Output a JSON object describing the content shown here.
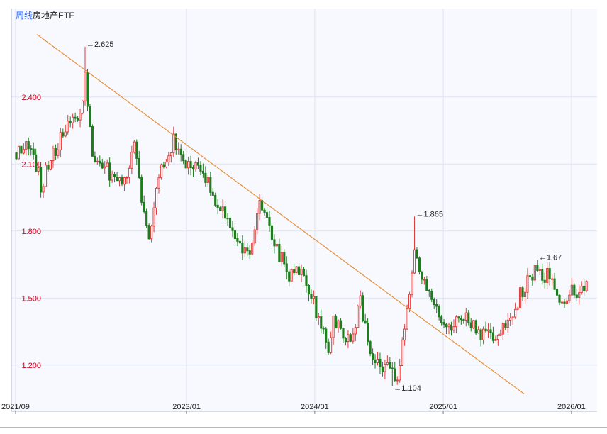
{
  "header": {
    "period_label": "周线",
    "instrument_name": "房地产ETF"
  },
  "colors": {
    "up": "#e03c3c",
    "down": "#1e7d1e",
    "trendline": "#e8913c",
    "grid": "#dce4f2",
    "axis_label": "#d0021b",
    "background": "#f8f9ff",
    "period_label": "#2962ff"
  },
  "chart_data": {
    "type": "candlestick",
    "title": "",
    "xlabel": "",
    "ylabel": "",
    "ylim": [
      1.05,
      2.72
    ],
    "xlim": [
      "2021-08-20",
      "2026-03-15"
    ],
    "y_ticks": [
      "1.200",
      "1.500",
      "1.800",
      "2.100",
      "2.400"
    ],
    "x_ticks": [
      {
        "date": "2021-09-01",
        "label": "2021/09"
      },
      {
        "date": "2023-01-01",
        "label": "2023/01"
      },
      {
        "date": "2024-01-01",
        "label": "2024/01"
      },
      {
        "date": "2025-01-01",
        "label": "2025/01"
      },
      {
        "date": "2026-01-01",
        "label": "2026/01"
      }
    ],
    "grid": true,
    "annotations": [
      {
        "label": "2.625",
        "date": "2022-03-18",
        "value": 2.625,
        "side": "above"
      },
      {
        "label": "1.865",
        "date": "2024-10-11",
        "value": 1.865,
        "side": "above"
      },
      {
        "label": "1.104",
        "date": "2024-08-09",
        "value": 1.104,
        "side": "below"
      },
      {
        "label": "1.67",
        "date": "2025-09-26",
        "value": 1.67,
        "side": "above"
      }
    ],
    "trendline": {
      "start": {
        "date": "2021-11-01",
        "value": 2.68
      },
      "end": {
        "date": "2025-08-20",
        "value": 1.07
      }
    },
    "anchors": [
      [
        "2021-09-03",
        2.15
      ],
      [
        "2021-10-15",
        2.2
      ],
      [
        "2021-11-12",
        2.0
      ],
      [
        "2021-12-10",
        2.12
      ],
      [
        "2022-01-07",
        2.22
      ],
      [
        "2022-02-11",
        2.3
      ],
      [
        "2022-03-11",
        2.35
      ],
      [
        "2022-03-18",
        2.5
      ],
      [
        "2022-04-08",
        2.15
      ],
      [
        "2022-05-06",
        2.1
      ],
      [
        "2022-06-03",
        2.05
      ],
      [
        "2022-07-08",
        2.02
      ],
      [
        "2022-08-05",
        2.18
      ],
      [
        "2022-08-26",
        1.95
      ],
      [
        "2022-09-16",
        1.78
      ],
      [
        "2022-10-21",
        2.1
      ],
      [
        "2022-11-25",
        2.2
      ],
      [
        "2022-12-23",
        2.1
      ],
      [
        "2023-01-20",
        2.1
      ],
      [
        "2023-02-24",
        2.05
      ],
      [
        "2023-03-24",
        1.92
      ],
      [
        "2023-05-05",
        1.85
      ],
      [
        "2023-06-09",
        1.68
      ],
      [
        "2023-07-07",
        1.72
      ],
      [
        "2023-07-28",
        1.95
      ],
      [
        "2023-08-18",
        1.83
      ],
      [
        "2023-09-15",
        1.72
      ],
      [
        "2023-10-20",
        1.6
      ],
      [
        "2023-11-17",
        1.62
      ],
      [
        "2023-12-22",
        1.52
      ],
      [
        "2024-01-19",
        1.35
      ],
      [
        "2024-02-09",
        1.28
      ],
      [
        "2024-02-23",
        1.4
      ],
      [
        "2024-03-22",
        1.35
      ],
      [
        "2024-04-12",
        1.32
      ],
      [
        "2024-05-10",
        1.48
      ],
      [
        "2024-06-07",
        1.28
      ],
      [
        "2024-07-05",
        1.18
      ],
      [
        "2024-08-02",
        1.18
      ],
      [
        "2024-08-23",
        1.15
      ],
      [
        "2024-09-27",
        1.5
      ],
      [
        "2024-10-11",
        1.75
      ],
      [
        "2024-11-01",
        1.6
      ],
      [
        "2024-12-06",
        1.5
      ],
      [
        "2025-01-10",
        1.36
      ],
      [
        "2025-02-14",
        1.42
      ],
      [
        "2025-03-14",
        1.4
      ],
      [
        "2025-04-11",
        1.35
      ],
      [
        "2025-05-16",
        1.33
      ],
      [
        "2025-06-20",
        1.35
      ],
      [
        "2025-07-18",
        1.44
      ],
      [
        "2025-08-15",
        1.54
      ],
      [
        "2025-09-19",
        1.62
      ],
      [
        "2025-10-24",
        1.6
      ],
      [
        "2025-11-28",
        1.5
      ],
      [
        "2025-12-26",
        1.52
      ],
      [
        "2026-02-13",
        1.54
      ]
    ]
  }
}
